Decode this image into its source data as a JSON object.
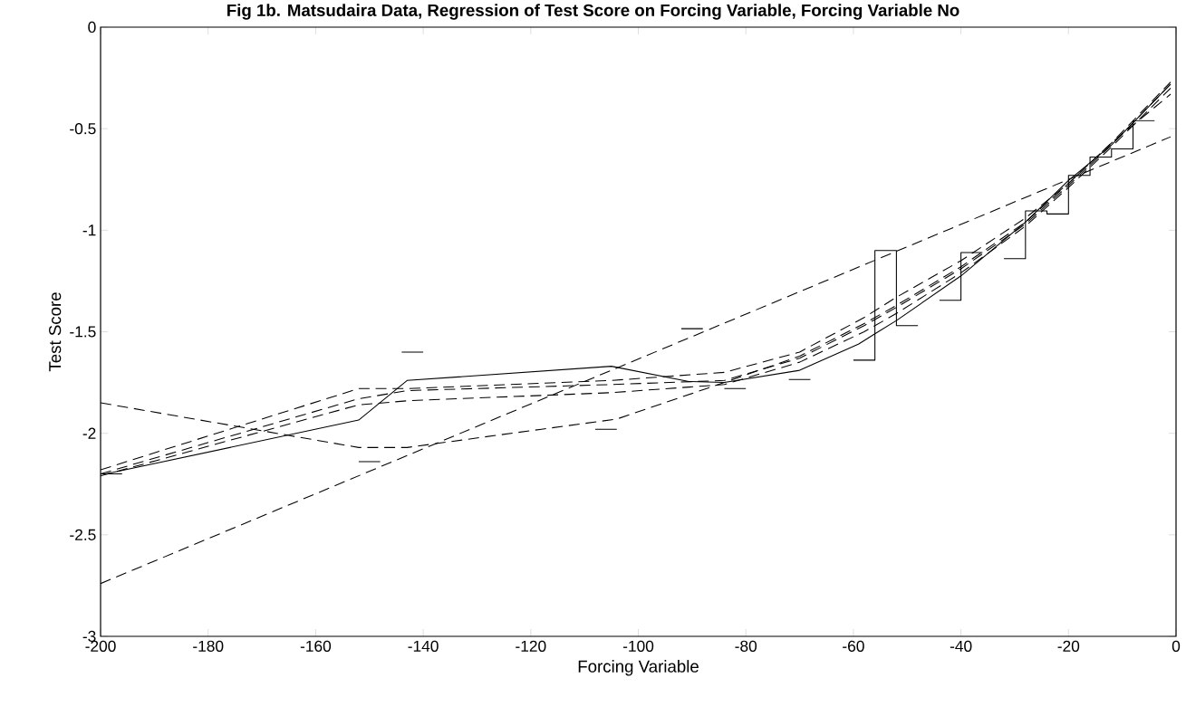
{
  "chart_data": {
    "type": "line",
    "title": "Fig 1b. Matsudaira Data, Regression of Test Score on Forcing Variable, Forcing Variable No",
    "xlabel": "Forcing Variable",
    "ylabel": "Test Score",
    "xlim": [
      -200,
      0
    ],
    "ylim": [
      -3,
      0
    ],
    "xticks": [
      -200,
      -180,
      -160,
      -140,
      -120,
      -100,
      -80,
      -60,
      -40,
      -20,
      0
    ],
    "yticks": [
      -3,
      -2.5,
      -2,
      -1.5,
      -1,
      -0.5,
      0
    ],
    "grid": false,
    "marker": "none",
    "series": [
      {
        "type": "step",
        "color": "#000000",
        "line_style": "solid",
        "x": [
          -200,
          -196,
          -194,
          -152,
          -148,
          -146,
          -144,
          -140,
          -138,
          -108,
          -104,
          -102,
          -92,
          -88,
          -86,
          -84,
          -80,
          -78,
          -72,
          -68,
          -66,
          -60,
          -56,
          -52,
          -48,
          -46,
          -44,
          -40,
          -36,
          -34,
          -32,
          -28,
          -24,
          -20,
          -16,
          -12,
          -8,
          -4
        ],
        "values": [
          -2.2,
          -2.2,
          null,
          -2.14,
          -2.14,
          null,
          -1.6,
          -1.6,
          null,
          -1.98,
          -1.98,
          null,
          -1.485,
          -1.485,
          null,
          -1.78,
          -1.78,
          null,
          -1.735,
          -1.735,
          null,
          -1.64,
          -1.1,
          -1.47,
          -1.47,
          null,
          -1.345,
          -1.11,
          -1.11,
          null,
          -1.14,
          -0.905,
          -0.92,
          -0.73,
          -0.64,
          -0.6,
          -0.46,
          -0.46
        ]
      },
      {
        "color": "#000000",
        "line_style": "solid",
        "x": [
          -199,
          -152,
          -143,
          -105,
          -90.6,
          -84,
          -70,
          -59,
          -56,
          -52,
          -40,
          -28,
          -20,
          -12,
          -1
        ],
        "values": [
          -2.2,
          -1.935,
          -1.74,
          -1.67,
          -1.745,
          -1.75,
          -1.69,
          -1.56,
          -1.51,
          -1.445,
          -1.225,
          -0.96,
          -0.755,
          -0.58,
          -0.28
        ]
      },
      {
        "color": "#000000",
        "line_style": "dashed",
        "x": [
          -200,
          -152,
          -143,
          -105,
          -84,
          -70,
          -58,
          -52,
          -40,
          -28,
          -20,
          -12,
          -1
        ],
        "values": [
          -2.18,
          -1.78,
          -1.78,
          -1.74,
          -1.7,
          -1.6,
          -1.43,
          -1.33,
          -1.15,
          -0.94,
          -0.77,
          -0.57,
          -0.27
        ]
      },
      {
        "color": "#000000",
        "line_style": "dashed",
        "x": [
          -200,
          -152,
          -143,
          -105,
          -84,
          -70,
          -58,
          -52,
          -40,
          -28,
          -20,
          -12,
          -1
        ],
        "values": [
          -2.2,
          -1.83,
          -1.79,
          -1.76,
          -1.74,
          -1.63,
          -1.47,
          -1.38,
          -1.19,
          -0.97,
          -0.78,
          -0.58,
          -0.28
        ]
      },
      {
        "color": "#000000",
        "line_style": "dashed",
        "x": [
          -200,
          -152,
          -143,
          -105,
          -84,
          -70,
          -58,
          -52,
          -40,
          -28,
          -20,
          -12,
          -1
        ],
        "values": [
          -2.21,
          -1.86,
          -1.84,
          -1.8,
          -1.76,
          -1.65,
          -1.5,
          -1.41,
          -1.21,
          -0.98,
          -0.79,
          -0.59,
          -0.3
        ]
      },
      {
        "color": "#000000",
        "line_style": "dashed",
        "x": [
          -200,
          -152,
          -143,
          -118,
          -104,
          -84,
          -70,
          -58,
          -52,
          -40,
          -28,
          -20,
          -12,
          -1
        ],
        "values": [
          -1.85,
          -2.07,
          -2.07,
          -1.98,
          -1.93,
          -1.75,
          -1.62,
          -1.46,
          -1.37,
          -1.18,
          -0.96,
          -0.77,
          -0.57,
          -0.33
        ]
      },
      {
        "color": "#000000",
        "line_style": "dashed",
        "x": [
          -200,
          -1
        ],
        "values": [
          -2.74,
          -0.54
        ]
      }
    ]
  }
}
